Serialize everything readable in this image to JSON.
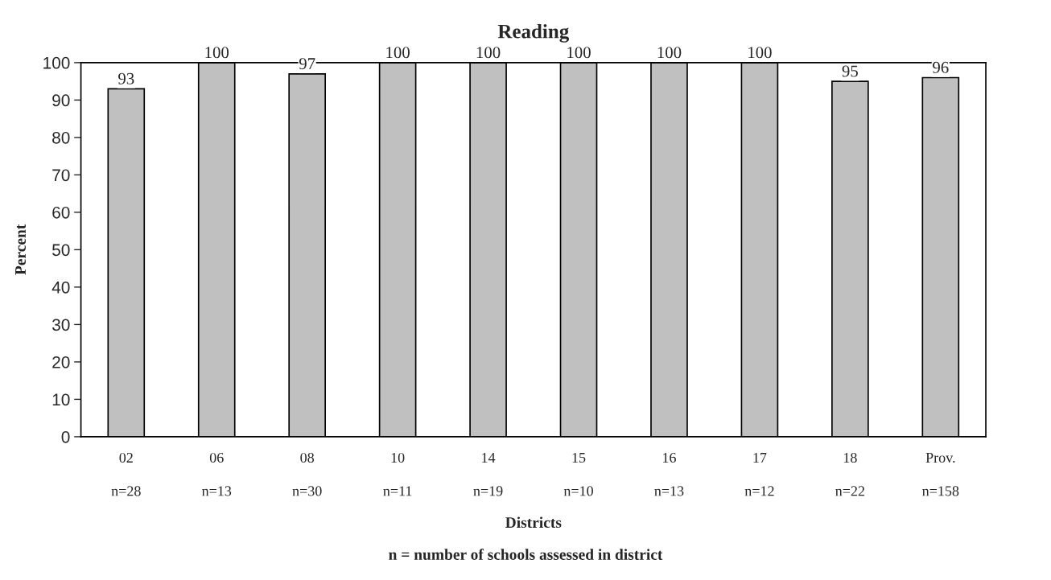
{
  "chart_data": {
    "type": "bar",
    "title": "Reading",
    "xlabel": "Districts",
    "ylabel": "Percent",
    "annotations": [
      "n = number of schools assessed in district"
    ],
    "categories": [
      "02\nn=28",
      "06\nn=13",
      "08\nn=30",
      "10\nn=11",
      "14\nn=19",
      "15\nn=10",
      "16\nn=13",
      "17\nn=12",
      "18\nn=22",
      "Prov.\nn=158"
    ],
    "values": [
      93,
      100,
      97,
      100,
      100,
      100,
      100,
      100,
      95,
      96
    ],
    "color": "#c0c0c0",
    "data_labels": true,
    "grid": false,
    "ylim": [
      0,
      100
    ],
    "yticks": [
      0,
      10,
      20,
      30,
      40,
      50,
      60,
      70,
      80,
      90,
      100
    ]
  }
}
